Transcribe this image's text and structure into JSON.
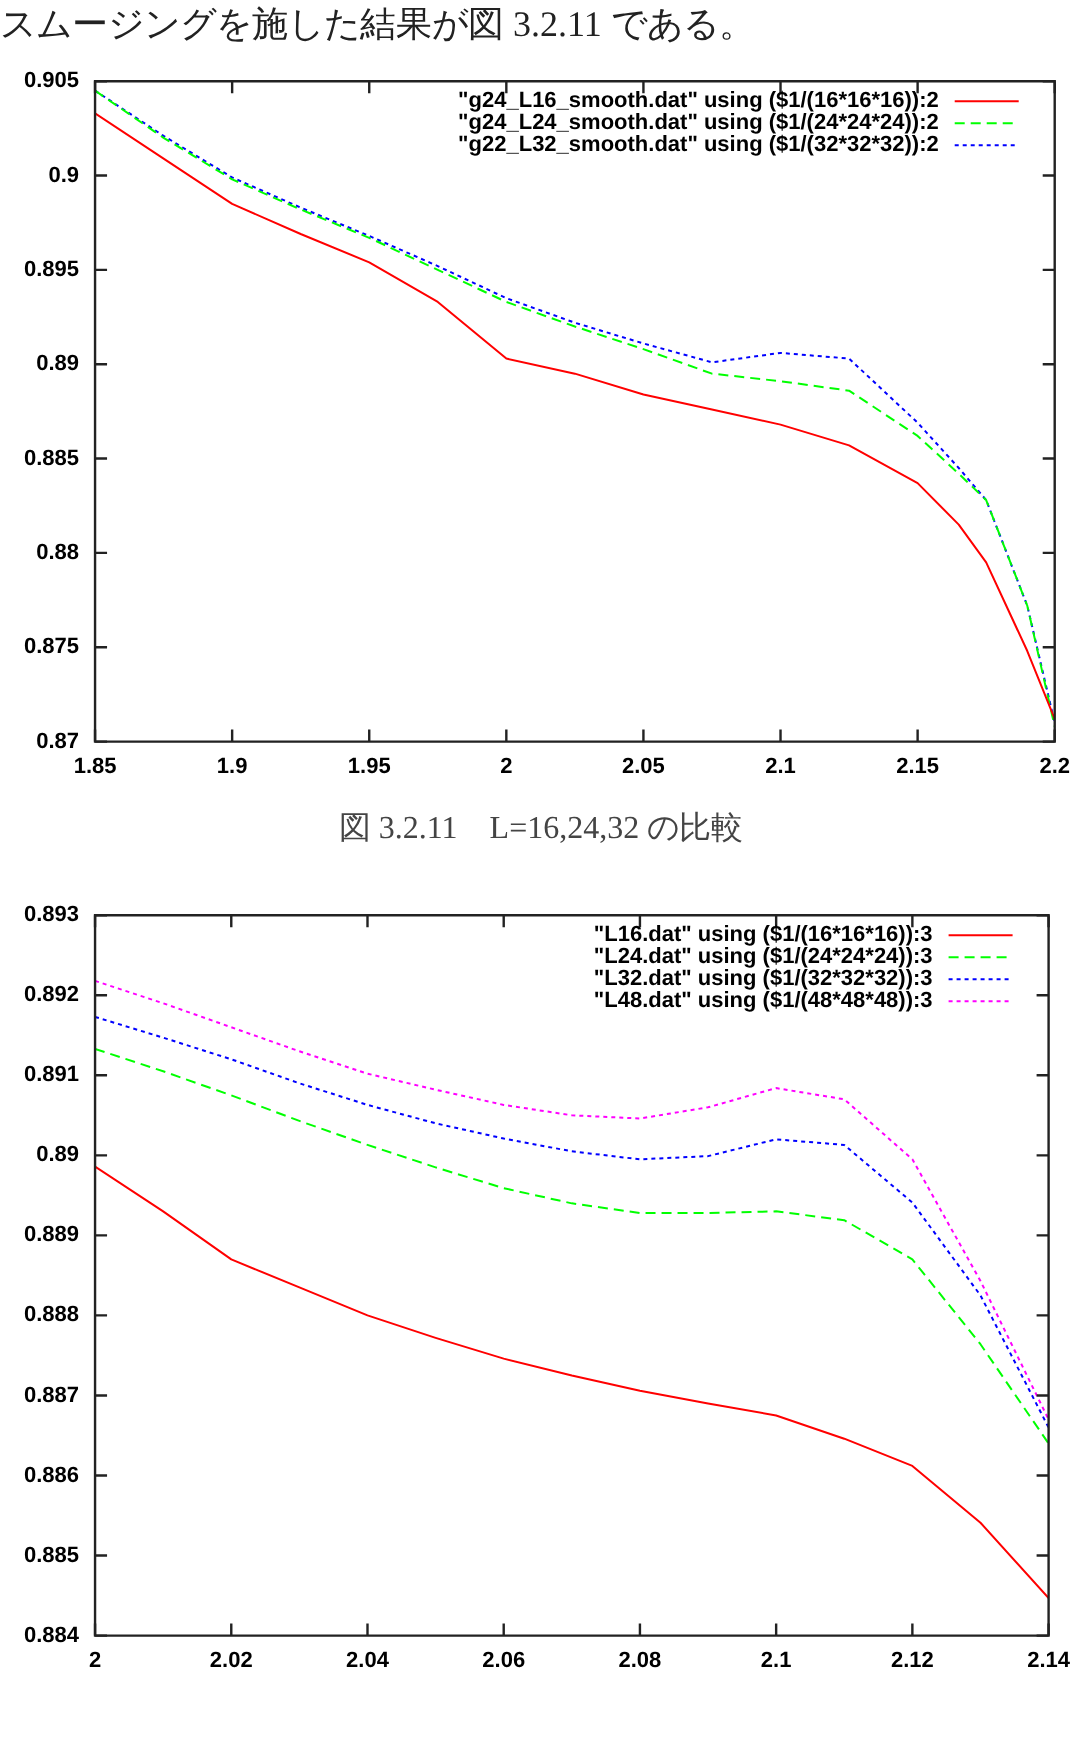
{
  "chart_data": [
    {
      "type": "line",
      "annotations": [
        "スムージングを施した結果が図 3.2.11 である。",
        "図 3.2.11　L=16,24,32 の比較"
      ],
      "legend": "top right",
      "grid": false,
      "marker": "none",
      "xlim": [
        1.85,
        2.2
      ],
      "xticks": [
        1.85,
        1.9,
        1.95,
        2,
        2.05,
        2.1,
        2.15,
        2.2
      ],
      "ylim": [
        0.87,
        0.905
      ],
      "yticks": [
        0.87,
        0.875,
        0.88,
        0.885,
        0.89,
        0.895,
        0.9,
        0.905
      ],
      "series": [
        {
          "name": "\"g24_L16_smooth.dat\" using ($1/(16*16*16)):2",
          "color": "#ff0000",
          "line_style": "solid",
          "x": [
            1.85,
            1.875,
            1.9,
            1.925,
            1.95,
            1.975,
            2.0,
            2.025,
            2.05,
            2.075,
            2.1,
            2.125,
            2.15,
            2.165,
            2.175,
            2.19,
            2.2
          ],
          "values": [
            0.9033,
            0.9009,
            0.8985,
            0.8969,
            0.8954,
            0.8933,
            0.8903,
            0.8895,
            0.8884,
            0.8876,
            0.8868,
            0.8857,
            0.8837,
            0.8815,
            0.8795,
            0.8748,
            0.8712
          ]
        },
        {
          "name": "\"g24_L24_smooth.dat\" using ($1/(24*24*24)):2",
          "color": "#00ff00",
          "line_style": "dashed",
          "x": [
            1.85,
            1.875,
            1.9,
            1.925,
            1.95,
            1.975,
            2.0,
            2.025,
            2.05,
            2.075,
            2.1,
            2.125,
            2.15,
            2.165,
            2.175,
            2.19,
            2.2
          ],
          "values": [
            0.9045,
            0.902,
            0.8998,
            0.8982,
            0.8967,
            0.895,
            0.8933,
            0.892,
            0.8908,
            0.8895,
            0.8891,
            0.8886,
            0.8862,
            0.8842,
            0.8828,
            0.8772,
            0.8708
          ]
        },
        {
          "name": "\"g22_L32_smooth.dat\" using ($1/(32*32*32)):2",
          "color": "#0000ff",
          "line_style": "dotted",
          "x": [
            1.85,
            1.875,
            1.9,
            1.925,
            1.95,
            1.975,
            2.0,
            2.025,
            2.05,
            2.075,
            2.1,
            2.125,
            2.15,
            2.165,
            2.175,
            2.19,
            2.2
          ],
          "values": [
            0.9045,
            0.9021,
            0.8999,
            0.8983,
            0.8968,
            0.8952,
            0.8935,
            0.8922,
            0.8911,
            0.8901,
            0.8906,
            0.8903,
            0.8869,
            0.8845,
            0.8828,
            0.8772,
            0.871
          ]
        }
      ]
    },
    {
      "type": "line",
      "legend": "top right",
      "grid": false,
      "marker": "none",
      "xlim": [
        2,
        2.14
      ],
      "xticks": [
        2,
        2.02,
        2.04,
        2.06,
        2.08,
        2.1,
        2.12,
        2.14
      ],
      "ylim": [
        0.884,
        0.893
      ],
      "yticks": [
        0.884,
        0.885,
        0.886,
        0.887,
        0.888,
        0.889,
        0.89,
        0.891,
        0.892,
        0.893
      ],
      "series": [
        {
          "name": "\"L16.dat\" using ($1/(16*16*16)):3",
          "color": "#ff0000",
          "line_style": "solid",
          "x": [
            2.0,
            2.01,
            2.02,
            2.03,
            2.04,
            2.05,
            2.06,
            2.07,
            2.08,
            2.09,
            2.1,
            2.11,
            2.12,
            2.13,
            2.14
          ],
          "values": [
            0.88986,
            0.8893,
            0.8887,
            0.88835,
            0.888,
            0.88772,
            0.88746,
            0.88725,
            0.88706,
            0.8869,
            0.88675,
            0.88646,
            0.88612,
            0.88541,
            0.88447
          ]
        },
        {
          "name": "\"L24.dat\" using ($1/(24*24*24)):3",
          "color": "#00ff00",
          "line_style": "dashed",
          "x": [
            2.0,
            2.01,
            2.02,
            2.03,
            2.04,
            2.05,
            2.06,
            2.07,
            2.08,
            2.09,
            2.1,
            2.11,
            2.12,
            2.13,
            2.14
          ],
          "values": [
            0.89133,
            0.89105,
            0.89075,
            0.89043,
            0.89013,
            0.88985,
            0.88959,
            0.8894,
            0.88928,
            0.88928,
            0.8893,
            0.88919,
            0.8887,
            0.88764,
            0.8864
          ]
        },
        {
          "name": "\"L32.dat\" using ($1/(32*32*32)):3",
          "color": "#0000ff",
          "line_style": "dotted",
          "x": [
            2.0,
            2.01,
            2.02,
            2.03,
            2.04,
            2.05,
            2.06,
            2.07,
            2.08,
            2.09,
            2.1,
            2.11,
            2.12,
            2.13,
            2.14
          ],
          "values": [
            0.89173,
            0.89147,
            0.8912,
            0.8909,
            0.89063,
            0.8904,
            0.89021,
            0.89005,
            0.88995,
            0.88999,
            0.8902,
            0.89013,
            0.88941,
            0.88825,
            0.8866
          ]
        },
        {
          "name": "\"L48.dat\" using ($1/(48*48*48)):3",
          "color": "#ff00ff",
          "line_style": "dotted",
          "x": [
            2.0,
            2.01,
            2.02,
            2.03,
            2.04,
            2.05,
            2.06,
            2.07,
            2.08,
            2.09,
            2.1,
            2.11,
            2.12,
            2.13,
            2.14
          ],
          "values": [
            0.89218,
            0.8919,
            0.8916,
            0.8913,
            0.89102,
            0.89082,
            0.89063,
            0.8905,
            0.89046,
            0.8906,
            0.89084,
            0.8907,
            0.88995,
            0.88843,
            0.8867
          ]
        }
      ]
    }
  ]
}
